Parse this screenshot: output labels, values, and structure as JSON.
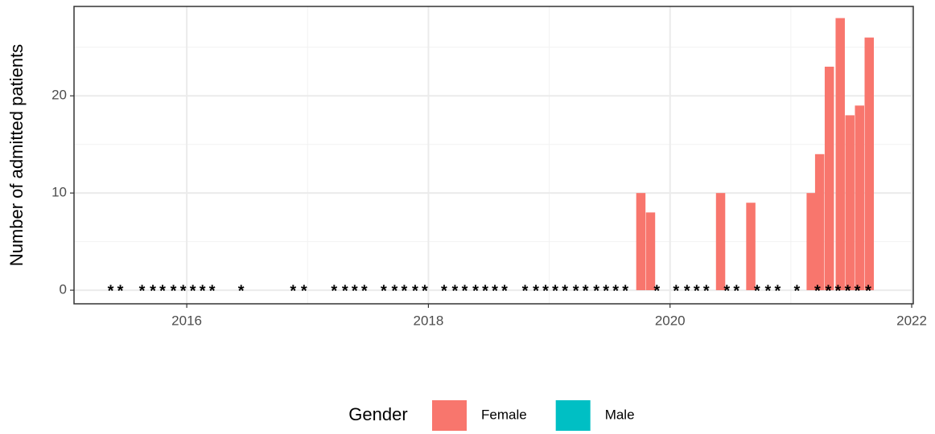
{
  "chart_data": {
    "type": "bar",
    "y_label": "Number of admitted patients",
    "legend_title": "Gender",
    "legend_position": "bottom",
    "grid": true,
    "xlim": [
      2015.067,
      2022.013
    ],
    "ylim": [
      -1.4,
      29.2
    ],
    "xticks": [
      2016,
      2018,
      2020,
      2022
    ],
    "yticks": [
      0,
      10,
      20
    ],
    "series": [
      {
        "name": "Female",
        "color": "#f8766d",
        "x": [
          2019.76,
          2019.84,
          2020.42,
          2020.67,
          2021.17,
          2021.24,
          2021.32,
          2021.41,
          2021.49,
          2021.57,
          2021.65
        ],
        "values": [
          10,
          8,
          10,
          9,
          10,
          14,
          23,
          28,
          18,
          19,
          26
        ]
      },
      {
        "name": "Male",
        "color": "#00bfc4",
        "x": [],
        "values": []
      }
    ],
    "suppressed": {
      "label": "*",
      "x": [
        2015.37,
        2015.45,
        2015.63,
        2015.72,
        2015.8,
        2015.89,
        2015.97,
        2016.05,
        2016.13,
        2016.21,
        2016.45,
        2016.88,
        2016.97,
        2017.22,
        2017.31,
        2017.39,
        2017.47,
        2017.63,
        2017.72,
        2017.8,
        2017.89,
        2017.97,
        2018.13,
        2018.22,
        2018.3,
        2018.39,
        2018.47,
        2018.55,
        2018.63,
        2018.8,
        2018.89,
        2018.97,
        2019.05,
        2019.13,
        2019.22,
        2019.3,
        2019.39,
        2019.47,
        2019.55,
        2019.63,
        2019.89,
        2020.05,
        2020.14,
        2020.22,
        2020.3,
        2020.47,
        2020.55,
        2020.72,
        2020.81,
        2020.89,
        2021.05,
        2021.22,
        2021.31,
        2021.39,
        2021.47,
        2021.55,
        2021.64
      ]
    }
  }
}
